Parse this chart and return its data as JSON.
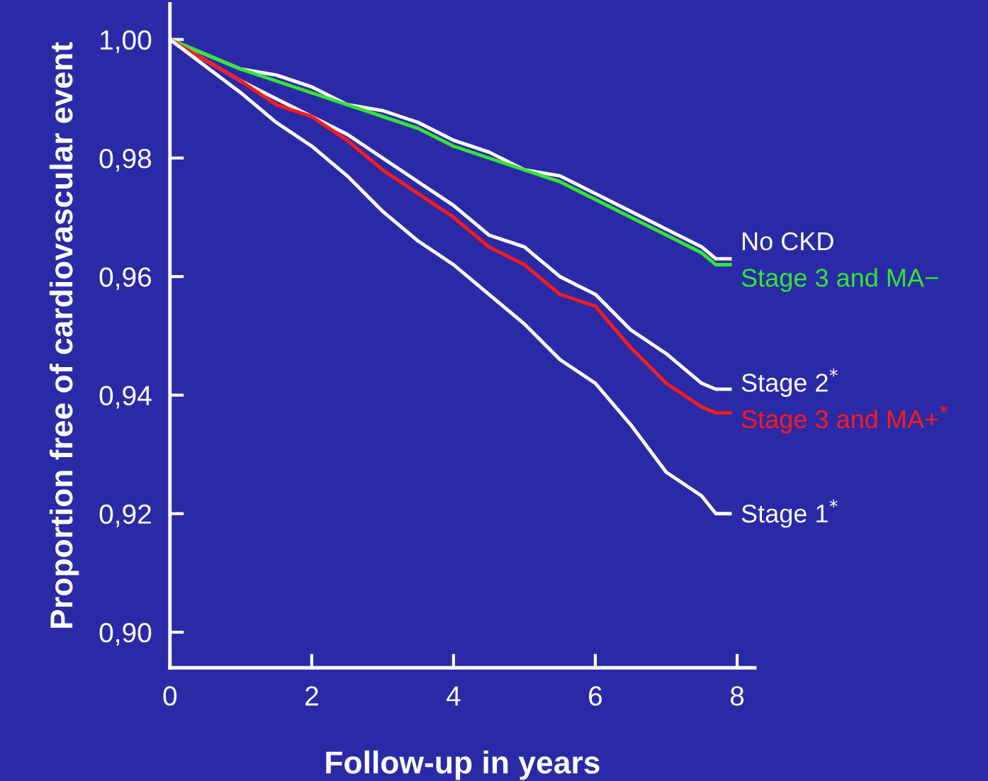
{
  "chart_data": {
    "type": "line",
    "xlabel": "Follow-up in years",
    "ylabel": "Proportion free of cardiovascular event",
    "xlim": [
      0,
      8.25
    ],
    "ylim": [
      0.894,
      1.006
    ],
    "xticks": [
      0,
      2,
      4,
      6,
      8
    ],
    "yticks": [
      {
        "value": 0.9,
        "label": "0,90"
      },
      {
        "value": 0.92,
        "label": "0,92"
      },
      {
        "value": 0.94,
        "label": "0,94"
      },
      {
        "value": 0.96,
        "label": "0,96"
      },
      {
        "value": 0.98,
        "label": "0,98"
      },
      {
        "value": 1.0,
        "label": "1,00"
      }
    ],
    "grid": false,
    "legend": false,
    "marker": "none",
    "line_style": "solid",
    "x": [
      0,
      1,
      1.5,
      2,
      2.5,
      3,
      3.5,
      4,
      4.5,
      5,
      5.5,
      6,
      6.5,
      7,
      7.5,
      7.7,
      7.9
    ],
    "series": [
      {
        "name": "No CKD",
        "color": "#ffffff",
        "values": [
          1.0,
          0.995,
          0.994,
          0.992,
          0.989,
          0.988,
          0.986,
          0.983,
          0.981,
          0.978,
          0.977,
          0.974,
          0.971,
          0.968,
          0.965,
          0.963,
          0.963
        ]
      },
      {
        "name": "Stage 3 and MA−",
        "color": "#33e633",
        "values": [
          1.0,
          0.995,
          0.993,
          0.991,
          0.989,
          0.987,
          0.985,
          0.982,
          0.98,
          0.978,
          0.976,
          0.973,
          0.97,
          0.967,
          0.964,
          0.962,
          0.962
        ]
      },
      {
        "name": "Stage 2$^{*}$",
        "color": "#ffffff",
        "values": [
          1.0,
          0.993,
          0.99,
          0.987,
          0.984,
          0.98,
          0.976,
          0.972,
          0.967,
          0.965,
          0.96,
          0.957,
          0.951,
          0.947,
          0.942,
          0.941,
          0.941
        ]
      },
      {
        "name": "Stage 3 and MA+$^{*}$",
        "color": "#ff1a1a",
        "values": [
          1.0,
          0.993,
          0.989,
          0.987,
          0.983,
          0.978,
          0.974,
          0.97,
          0.965,
          0.962,
          0.957,
          0.955,
          0.948,
          0.942,
          0.938,
          0.937,
          0.937
        ]
      },
      {
        "name": "Stage 1$^{*}$",
        "color": "#ffffff",
        "values": [
          1.0,
          0.991,
          0.986,
          0.982,
          0.977,
          0.971,
          0.966,
          0.962,
          0.957,
          0.952,
          0.946,
          0.942,
          0.935,
          0.927,
          0.923,
          0.92,
          0.92
        ]
      }
    ]
  }
}
